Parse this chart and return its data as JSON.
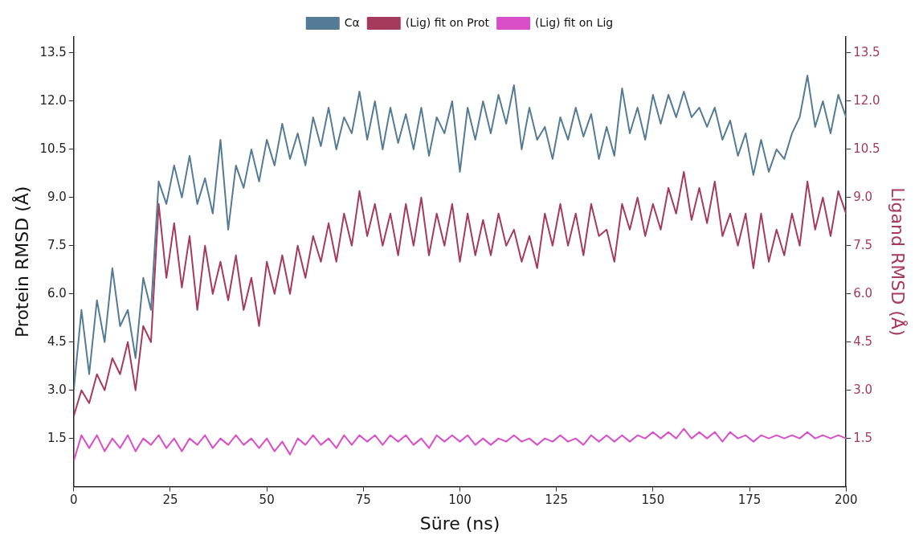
{
  "chart_data": {
    "type": "line",
    "xlabel": "Süre (ns)",
    "ylabel": "Protein RMSD (Å)",
    "y2label": "Ligand RMSD (Å)",
    "x": [
      0,
      2,
      4,
      6,
      8,
      10,
      12,
      14,
      16,
      18,
      20,
      22,
      24,
      26,
      28,
      30,
      32,
      34,
      36,
      38,
      40,
      42,
      44,
      46,
      48,
      50,
      52,
      54,
      56,
      58,
      60,
      62,
      64,
      66,
      68,
      70,
      72,
      74,
      76,
      78,
      80,
      82,
      84,
      86,
      88,
      90,
      92,
      94,
      96,
      98,
      100,
      102,
      104,
      106,
      108,
      110,
      112,
      114,
      116,
      118,
      120,
      122,
      124,
      126,
      128,
      130,
      132,
      134,
      136,
      138,
      140,
      142,
      144,
      146,
      148,
      150,
      152,
      154,
      156,
      158,
      160,
      162,
      164,
      166,
      168,
      170,
      172,
      174,
      176,
      178,
      180,
      182,
      184,
      186,
      188,
      190,
      192,
      194,
      196,
      198,
      200
    ],
    "series": [
      {
        "name": "Cα",
        "color": "#557a95",
        "values": [
          3.0,
          5.5,
          3.5,
          5.8,
          4.5,
          6.8,
          5.0,
          5.5,
          4.0,
          6.5,
          5.5,
          9.5,
          8.8,
          10.0,
          9.0,
          10.3,
          8.8,
          9.6,
          8.5,
          10.8,
          8.0,
          10.0,
          9.3,
          10.5,
          9.5,
          10.8,
          10.0,
          11.3,
          10.2,
          11.0,
          10.0,
          11.5,
          10.6,
          11.8,
          10.5,
          11.5,
          11.0,
          12.3,
          10.8,
          12.0,
          10.5,
          11.8,
          10.7,
          11.6,
          10.5,
          11.8,
          10.3,
          11.5,
          11.0,
          12.0,
          9.8,
          11.8,
          10.8,
          12.0,
          11.0,
          12.2,
          11.3,
          12.5,
          10.5,
          11.8,
          10.8,
          11.2,
          10.2,
          11.5,
          10.8,
          11.8,
          10.9,
          11.6,
          10.2,
          11.2,
          10.3,
          12.4,
          11.0,
          11.8,
          10.8,
          12.2,
          11.3,
          12.2,
          11.5,
          12.3,
          11.5,
          11.8,
          11.2,
          11.8,
          10.8,
          11.4,
          10.3,
          11.0,
          9.7,
          10.8,
          9.8,
          10.5,
          10.2,
          11.0,
          11.5,
          12.8,
          11.2,
          12.0,
          11.0,
          12.2,
          11.5
        ]
      },
      {
        "name": "(Lig) fit on Prot",
        "color": "#a63a5c",
        "axis": "y2",
        "values": [
          2.2,
          3.0,
          2.6,
          3.5,
          3.0,
          4.0,
          3.5,
          4.5,
          3.0,
          5.0,
          4.5,
          8.8,
          6.5,
          8.2,
          6.2,
          7.8,
          5.5,
          7.5,
          6.0,
          7.0,
          5.8,
          7.2,
          5.5,
          6.5,
          5.0,
          7.0,
          6.0,
          7.2,
          6.0,
          7.5,
          6.5,
          7.8,
          7.0,
          8.2,
          7.0,
          8.5,
          7.5,
          9.2,
          7.8,
          8.8,
          7.5,
          8.5,
          7.2,
          8.8,
          7.5,
          9.0,
          7.2,
          8.5,
          7.5,
          8.8,
          7.0,
          8.5,
          7.2,
          8.3,
          7.2,
          8.5,
          7.5,
          8.0,
          7.0,
          7.8,
          6.8,
          8.5,
          7.5,
          8.8,
          7.5,
          8.5,
          7.2,
          8.8,
          7.8,
          8.0,
          7.0,
          8.8,
          8.0,
          9.0,
          7.8,
          8.8,
          8.0,
          9.3,
          8.5,
          9.8,
          8.3,
          9.3,
          8.2,
          9.5,
          7.8,
          8.5,
          7.5,
          8.5,
          6.8,
          8.5,
          7.0,
          8.0,
          7.2,
          8.5,
          7.5,
          9.5,
          8.0,
          9.0,
          7.8,
          9.2,
          8.5
        ]
      },
      {
        "name": "(Lig) fit on Lig",
        "color": "#d94fc8",
        "axis": "y2",
        "values": [
          0.8,
          1.6,
          1.2,
          1.6,
          1.1,
          1.5,
          1.2,
          1.6,
          1.1,
          1.5,
          1.3,
          1.6,
          1.2,
          1.5,
          1.1,
          1.5,
          1.3,
          1.6,
          1.2,
          1.5,
          1.3,
          1.6,
          1.3,
          1.5,
          1.2,
          1.5,
          1.1,
          1.4,
          1.0,
          1.5,
          1.3,
          1.6,
          1.3,
          1.5,
          1.2,
          1.6,
          1.3,
          1.6,
          1.4,
          1.6,
          1.3,
          1.6,
          1.4,
          1.6,
          1.3,
          1.5,
          1.2,
          1.6,
          1.4,
          1.6,
          1.4,
          1.6,
          1.3,
          1.5,
          1.3,
          1.5,
          1.4,
          1.6,
          1.4,
          1.5,
          1.3,
          1.5,
          1.4,
          1.6,
          1.4,
          1.5,
          1.3,
          1.6,
          1.4,
          1.6,
          1.4,
          1.6,
          1.4,
          1.6,
          1.5,
          1.7,
          1.5,
          1.7,
          1.5,
          1.8,
          1.5,
          1.7,
          1.5,
          1.7,
          1.4,
          1.7,
          1.5,
          1.6,
          1.4,
          1.6,
          1.5,
          1.6,
          1.5,
          1.6,
          1.5,
          1.7,
          1.5,
          1.6,
          1.5,
          1.6,
          1.5
        ]
      }
    ],
    "xlim": [
      0,
      200
    ],
    "xticks": [
      0,
      25,
      50,
      75,
      100,
      125,
      150,
      175,
      200
    ],
    "ylim": [
      0,
      14
    ],
    "yticks": [
      1.5,
      {
        "value": 3,
        "label": "3.0"
      },
      4.5,
      {
        "value": 6,
        "label": "6.0"
      },
      7.5,
      {
        "value": 9,
        "label": "9.0"
      },
      10.5,
      {
        "value": 12,
        "label": "12.0"
      },
      13.5
    ],
    "y2lim": [
      0,
      14
    ],
    "y2ticks": [
      1.5,
      {
        "value": 3,
        "label": "3.0"
      },
      4.5,
      {
        "value": 6,
        "label": "6.0"
      },
      7.5,
      {
        "value": 9,
        "label": "9.0"
      },
      10.5,
      {
        "value": 12,
        "label": "12.0"
      },
      13.5
    ],
    "grid": false,
    "legend": "top",
    "marker": "none",
    "line_style": "solid"
  }
}
